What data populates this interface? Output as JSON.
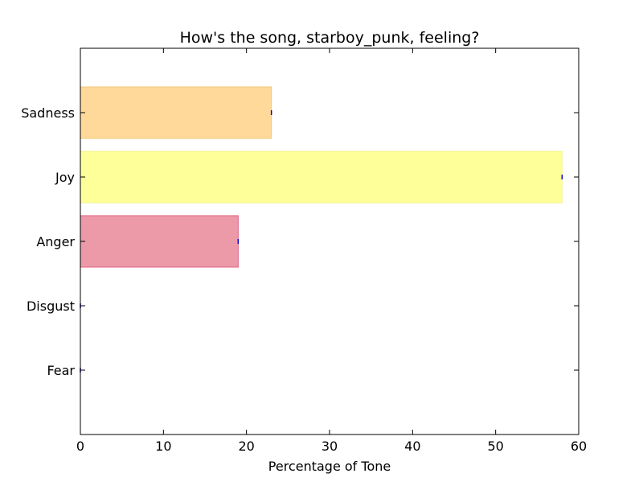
{
  "chart_data": {
    "type": "bar",
    "orientation": "horizontal",
    "title": "How's the song, starboy_punk, feeling?",
    "xlabel": "Percentage of Tone",
    "ylabel": "",
    "categories": [
      "Fear",
      "Disgust",
      "Anger",
      "Joy",
      "Sadness"
    ],
    "values": [
      0,
      0,
      19,
      58,
      23
    ],
    "colors": [
      "#f2a0b4",
      "#c8a0ff",
      "#ec9aa8",
      "#ffff99",
      "#ffd999"
    ],
    "edge_colors": [
      "#e06080",
      "#9a70e0",
      "#e06080",
      "#f3f390",
      "#f2c87a"
    ],
    "marker_color": "#0000cc",
    "xlim": [
      0,
      60
    ],
    "xticks": [
      0,
      10,
      20,
      30,
      40,
      50,
      60
    ],
    "grid": false,
    "legend": "none"
  }
}
